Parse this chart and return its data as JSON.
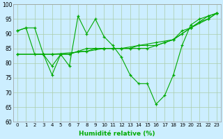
{
  "xlabel": "Humidité relative (%)",
  "background_color": "#cceeff",
  "grid_color": "#aaccaa",
  "line_color": "#00aa00",
  "xlim": [
    -0.5,
    23.5
  ],
  "ylim": [
    60,
    100
  ],
  "yticks": [
    60,
    65,
    70,
    75,
    80,
    85,
    90,
    95,
    100
  ],
  "xticks": [
    0,
    1,
    2,
    3,
    4,
    5,
    6,
    7,
    8,
    9,
    10,
    11,
    12,
    13,
    14,
    15,
    16,
    17,
    18,
    19,
    20,
    21,
    22,
    23
  ],
  "lines": [
    {
      "x": [
        0,
        1,
        2,
        3,
        4,
        5,
        6,
        7,
        8,
        9,
        10,
        11,
        12,
        13,
        14,
        15,
        16,
        17,
        18,
        19,
        20,
        21,
        22,
        23
      ],
      "y": [
        91,
        92,
        92,
        83,
        79,
        83,
        79,
        96,
        90,
        95,
        89,
        86,
        82,
        76,
        73,
        73,
        66,
        69,
        76,
        86,
        93,
        95,
        96,
        97
      ]
    },
    {
      "x": [
        0,
        3,
        4,
        5,
        6,
        7,
        8,
        9,
        10,
        11,
        12,
        13,
        14,
        15,
        16,
        17,
        18,
        19,
        20,
        21,
        22,
        23
      ],
      "y": [
        83,
        83,
        83,
        83,
        83,
        84,
        84,
        85,
        85,
        85,
        85,
        85,
        86,
        86,
        86,
        87,
        88,
        90,
        92,
        94,
        95,
        97
      ]
    },
    {
      "x": [
        0,
        1,
        2,
        3,
        4,
        5,
        6,
        7,
        8,
        9,
        10,
        11,
        12,
        13,
        14,
        15,
        16,
        17,
        18,
        19,
        20,
        21,
        22,
        23
      ],
      "y": [
        91,
        92,
        83,
        83,
        76,
        83,
        83,
        84,
        85,
        85,
        85,
        85,
        85,
        85,
        85,
        85,
        86,
        87,
        88,
        91,
        92,
        94,
        96,
        97
      ]
    },
    {
      "x": [
        0,
        4,
        6,
        8,
        10,
        12,
        14,
        16,
        18,
        20,
        22,
        23
      ],
      "y": [
        83,
        83,
        83,
        84,
        85,
        85,
        86,
        87,
        88,
        92,
        95,
        97
      ]
    }
  ]
}
